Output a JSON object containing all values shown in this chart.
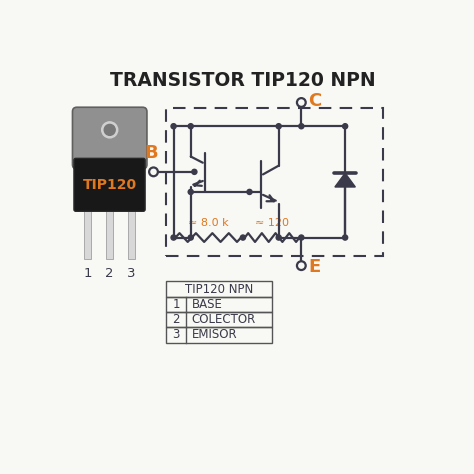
{
  "title": "TRANSISTOR TIP120 NPN",
  "title_color": "#222222",
  "background_color": "#f8f8f4",
  "orange_color": "#e07820",
  "dark_color": "#3a3a4a",
  "circuit_line_color": "#3a3a4a",
  "table_data": [
    [
      "TIP120 NPN",
      ""
    ],
    [
      "1",
      "BASE"
    ],
    [
      "2",
      "COLECTOR"
    ],
    [
      "3",
      "EMISOR"
    ]
  ],
  "label_B": "B",
  "label_C": "C",
  "label_E": "E",
  "label_8k": "≈ 8.0 k",
  "label_120": "≈ 120",
  "pin_labels": [
    "1",
    "2",
    "3"
  ]
}
